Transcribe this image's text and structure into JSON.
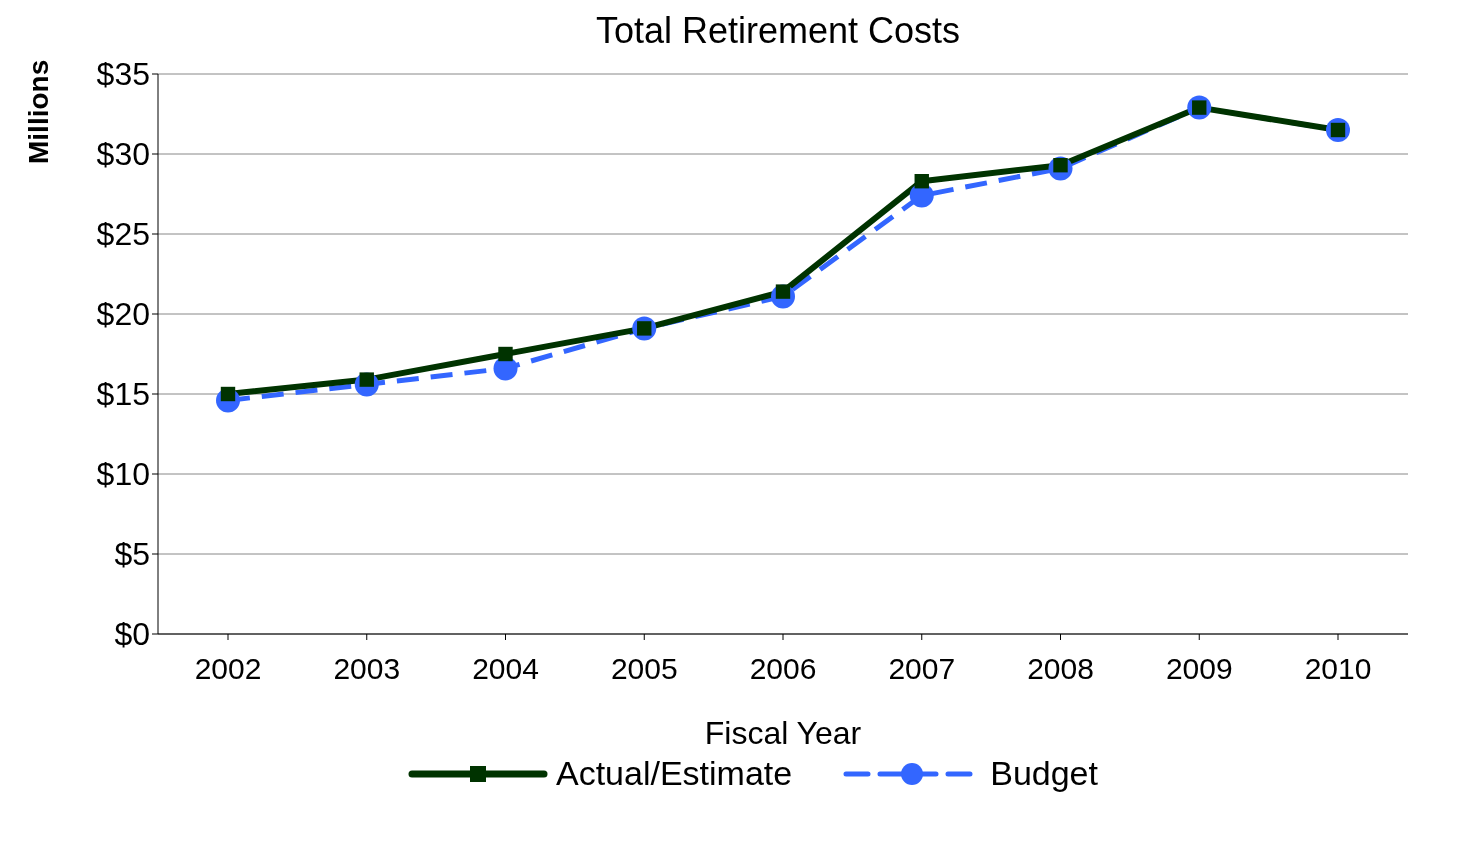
{
  "chart_data": {
    "type": "line",
    "title": "Total Retirement Costs",
    "xlabel": "Fiscal Year",
    "ylabel": "Millions",
    "categories": [
      "2002",
      "2003",
      "2004",
      "2005",
      "2006",
      "2007",
      "2008",
      "2009",
      "2010"
    ],
    "series": [
      {
        "name": "Actual/Estimate",
        "color": "#003300",
        "marker": "square",
        "line_style": "solid",
        "values": [
          15.0,
          15.9,
          17.5,
          19.1,
          21.4,
          28.3,
          29.3,
          32.9,
          31.5
        ]
      },
      {
        "name": "Budget",
        "color": "#3366ff",
        "marker": "circle",
        "line_style": "dashed",
        "values": [
          14.6,
          15.6,
          16.6,
          19.1,
          21.1,
          27.4,
          29.1,
          32.9,
          31.5
        ]
      }
    ],
    "ylim": [
      0,
      35
    ],
    "yticks": [
      {
        "value": 0,
        "label": "$0"
      },
      {
        "value": 5,
        "label": "$5"
      },
      {
        "value": 10,
        "label": "$10"
      },
      {
        "value": 15,
        "label": "$15"
      },
      {
        "value": 20,
        "label": "$20"
      },
      {
        "value": 25,
        "label": "$25"
      },
      {
        "value": 30,
        "label": "$30"
      },
      {
        "value": 35,
        "label": "$35"
      }
    ],
    "grid": "y",
    "legend": "bottom"
  }
}
